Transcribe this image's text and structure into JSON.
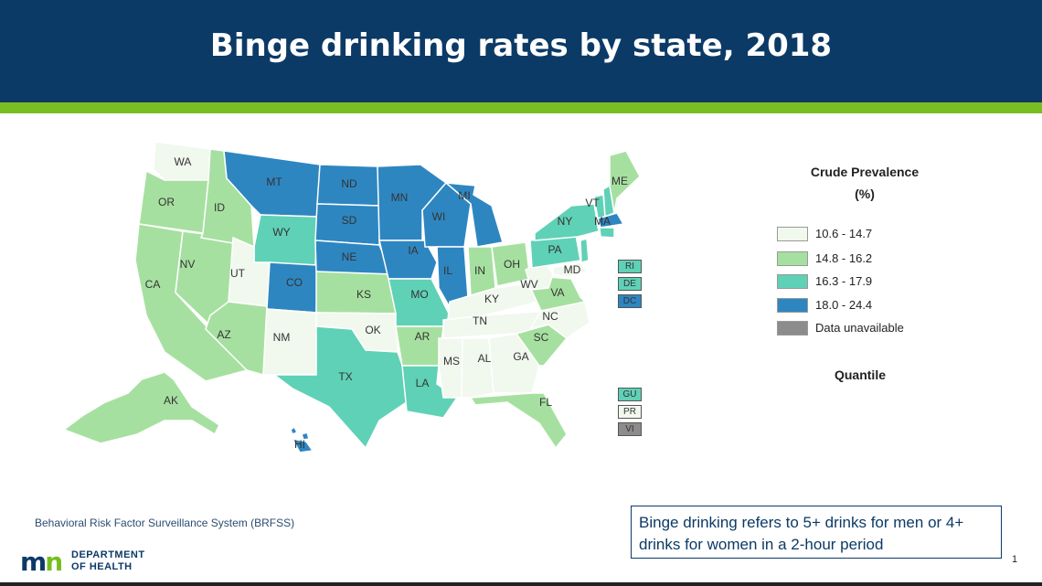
{
  "title": "Binge drinking rates by state, 2018",
  "colors": {
    "header_bg": "#0c3a66",
    "accent_bar": "#78be20",
    "class1": "#f1f8ee",
    "class2": "#a6e0a0",
    "class3": "#5fd1b6",
    "class4": "#2e86c1",
    "unavailable": "#8c8c8c"
  },
  "legend": {
    "title_line1": "Crude Prevalence",
    "title_line2": "(%)",
    "items": [
      {
        "label": "10.6 - 14.7",
        "color": "#f1f8ee"
      },
      {
        "label": "14.8 - 16.2",
        "color": "#a6e0a0"
      },
      {
        "label": "16.3 - 17.9",
        "color": "#5fd1b6"
      },
      {
        "label": "18.0 - 24.4",
        "color": "#2e86c1"
      },
      {
        "label": "Data unavailable",
        "color": "#8c8c8c"
      }
    ],
    "quantile_label": "Quantile"
  },
  "states": {
    "WA": 1,
    "OR": 2,
    "CA": 2,
    "NV": 2,
    "ID": 2,
    "MT": 4,
    "WY": 3,
    "UT": 1,
    "AZ": 2,
    "CO": 4,
    "NM": 1,
    "ND": 4,
    "SD": 4,
    "NE": 4,
    "KS": 2,
    "OK": 1,
    "TX": 3,
    "MN": 4,
    "IA": 4,
    "MO": 3,
    "AR": 2,
    "LA": 3,
    "WI": 4,
    "IL": 4,
    "MI": 4,
    "IN": 2,
    "OH": 2,
    "KY": 1,
    "TN": 1,
    "MS": 1,
    "AL": 1,
    "GA": 1,
    "FL": 2,
    "SC": 2,
    "NC": 1,
    "VA": 2,
    "WV": 1,
    "PA": 3,
    "NY": 3,
    "VT": 3,
    "NH": 3,
    "ME": 2,
    "MA": 4,
    "CT": 3,
    "NJ": 3,
    "MD": 1,
    "AK": 2,
    "HI": 4,
    "RI": 3,
    "DE": 3,
    "DC": 4
  },
  "territories": [
    {
      "label": "RI",
      "class": 3
    },
    {
      "label": "DE",
      "class": 3
    },
    {
      "label": "DC",
      "class": 4
    },
    {
      "label": "GU",
      "class": 3
    },
    {
      "label": "PR",
      "class": 1
    },
    {
      "label": "VI",
      "class": 5
    }
  ],
  "source_text": "Behavioral Risk Factor Surveillance System (BRFSS)",
  "logo": {
    "mark_m": "m",
    "mark_n": "n",
    "line1": "DEPARTMENT",
    "line2": "OF HEALTH"
  },
  "note_text": "Binge drinking refers to 5+ drinks for men or 4+ drinks for women in a 2-hour period",
  "page_number": "1"
}
